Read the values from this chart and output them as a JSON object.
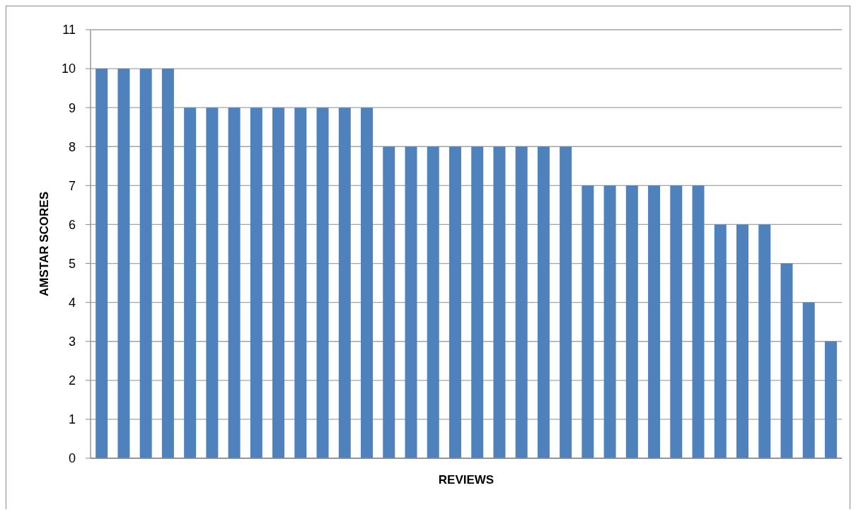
{
  "chart_data": {
    "type": "bar",
    "xlabel": "REVIEWS",
    "ylabel": "AMSTAR SCORES",
    "categories": [
      null,
      null,
      null,
      null,
      null,
      null,
      null,
      null,
      null,
      null,
      null,
      null,
      null,
      null,
      null,
      null,
      null,
      null,
      null,
      null,
      null,
      null,
      null,
      null,
      null,
      null,
      null,
      null,
      null,
      null,
      null,
      null,
      null,
      null
    ],
    "values": [
      10,
      10,
      10,
      10,
      9,
      9,
      9,
      9,
      9,
      9,
      9,
      9,
      9,
      8,
      8,
      8,
      8,
      8,
      8,
      8,
      8,
      8,
      7,
      7,
      7,
      7,
      7,
      7,
      6,
      6,
      6,
      5,
      4,
      3
    ],
    "color": "#4f81bd",
    "ylim": [
      0,
      11
    ],
    "yticks": [
      0,
      1,
      2,
      3,
      4,
      5,
      6,
      7,
      8,
      9,
      10,
      11
    ],
    "grid": "y",
    "tick_labels": "y"
  }
}
